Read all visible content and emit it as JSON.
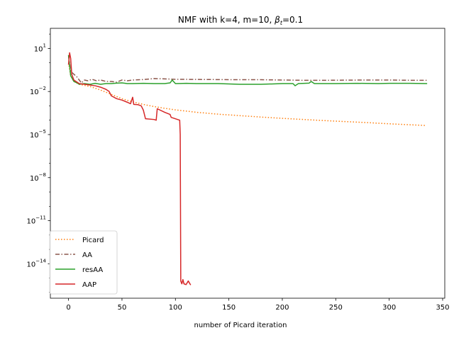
{
  "chart_data": {
    "type": "line",
    "title_prefix": "NMF with k=4, m=10,  ",
    "title_beta": "β",
    "title_beta_sub": "t",
    "title_suffix": "=0.1",
    "xlabel": "number of Picard iteration",
    "ylabel": "",
    "xlim": [
      -17,
      352
    ],
    "ylim_log10": [
      -16.4,
      2.4
    ],
    "y_scale": "log",
    "grid": false,
    "legend_position": "lower-left",
    "x_ticks": [
      0,
      50,
      100,
      150,
      200,
      250,
      300,
      350
    ],
    "x_tick_labels": [
      "0",
      "50",
      "100",
      "150",
      "200",
      "250",
      "300",
      "350"
    ],
    "y_ticks_log10": [
      1,
      -2,
      -5,
      -8,
      -11,
      -14
    ],
    "y_tick_labels": [
      {
        "base": "10",
        "exp": "1"
      },
      {
        "base": "10",
        "exp": "−2"
      },
      {
        "base": "10",
        "exp": "−5"
      },
      {
        "base": "10",
        "exp": "−8"
      },
      {
        "base": "10",
        "exp": "−11"
      },
      {
        "base": "10",
        "exp": "−14"
      }
    ],
    "series": [
      {
        "name": "Picard",
        "color": "#ff7f0e",
        "dash": "dotted",
        "points_log10": [
          [
            0,
            0
          ],
          [
            2,
            -0.9
          ],
          [
            5,
            -1.3
          ],
          [
            10,
            -1.5
          ],
          [
            20,
            -1.65
          ],
          [
            30,
            -1.9
          ],
          [
            40,
            -2.2
          ],
          [
            50,
            -2.5
          ],
          [
            60,
            -2.72
          ],
          [
            70,
            -2.9
          ],
          [
            80,
            -3.05
          ],
          [
            90,
            -3.17
          ],
          [
            100,
            -3.28
          ],
          [
            120,
            -3.45
          ],
          [
            140,
            -3.58
          ],
          [
            160,
            -3.68
          ],
          [
            180,
            -3.78
          ],
          [
            200,
            -3.87
          ],
          [
            220,
            -3.95
          ],
          [
            240,
            -4.03
          ],
          [
            260,
            -4.1
          ],
          [
            280,
            -4.17
          ],
          [
            300,
            -4.25
          ],
          [
            320,
            -4.32
          ],
          [
            335,
            -4.37
          ]
        ]
      },
      {
        "name": "AA",
        "color": "#8c564b",
        "dash": "dashdot",
        "points_log10": [
          [
            0,
            0.5
          ],
          [
            2,
            -0.6
          ],
          [
            5,
            -0.8
          ],
          [
            8,
            -1
          ],
          [
            10,
            -1.2
          ],
          [
            12,
            -1.4
          ],
          [
            15,
            -1.2
          ],
          [
            18,
            -1.25
          ],
          [
            22,
            -1.15
          ],
          [
            26,
            -1.25
          ],
          [
            30,
            -1.2
          ],
          [
            35,
            -1.3
          ],
          [
            40,
            -1.3
          ],
          [
            45,
            -1.35
          ],
          [
            50,
            -1.2
          ],
          [
            55,
            -1.25
          ],
          [
            60,
            -1.2
          ],
          [
            70,
            -1.17
          ],
          [
            80,
            -1.1
          ],
          [
            90,
            -1.12
          ],
          [
            100,
            -1.15
          ],
          [
            120,
            -1.16
          ],
          [
            140,
            -1.17
          ],
          [
            160,
            -1.18
          ],
          [
            180,
            -1.18
          ],
          [
            200,
            -1.2
          ],
          [
            220,
            -1.22
          ],
          [
            240,
            -1.22
          ],
          [
            260,
            -1.21
          ],
          [
            280,
            -1.2
          ],
          [
            300,
            -1.2
          ],
          [
            320,
            -1.22
          ],
          [
            335,
            -1.22
          ]
        ]
      },
      {
        "name": "resAA",
        "color": "#2ca02c",
        "dash": "solid",
        "points_log10": [
          [
            0,
            0.5
          ],
          [
            2,
            -0.9
          ],
          [
            5,
            -1.3
          ],
          [
            8,
            -1.4
          ],
          [
            10,
            -1.5
          ],
          [
            15,
            -1.45
          ],
          [
            20,
            -1.5
          ],
          [
            25,
            -1.43
          ],
          [
            30,
            -1.5
          ],
          [
            35,
            -1.45
          ],
          [
            40,
            -1.45
          ],
          [
            45,
            -1.42
          ],
          [
            50,
            -1.4
          ],
          [
            55,
            -1.45
          ],
          [
            60,
            -1.45
          ],
          [
            70,
            -1.43
          ],
          [
            80,
            -1.45
          ],
          [
            90,
            -1.45
          ],
          [
            95,
            -1.4
          ],
          [
            97,
            -1.2
          ],
          [
            100,
            -1.45
          ],
          [
            110,
            -1.43
          ],
          [
            120,
            -1.45
          ],
          [
            140,
            -1.45
          ],
          [
            160,
            -1.5
          ],
          [
            180,
            -1.5
          ],
          [
            200,
            -1.45
          ],
          [
            210,
            -1.45
          ],
          [
            212,
            -1.6
          ],
          [
            215,
            -1.45
          ],
          [
            225,
            -1.42
          ],
          [
            227,
            -1.3
          ],
          [
            230,
            -1.45
          ],
          [
            250,
            -1.45
          ],
          [
            270,
            -1.43
          ],
          [
            290,
            -1.45
          ],
          [
            300,
            -1.43
          ],
          [
            320,
            -1.43
          ],
          [
            335,
            -1.45
          ]
        ]
      },
      {
        "name": "AAP",
        "color": "#d62728",
        "dash": "solid",
        "points_log10": [
          [
            0,
            -0.1
          ],
          [
            1,
            0.7
          ],
          [
            2,
            0.3
          ],
          [
            3,
            -0.8
          ],
          [
            5,
            -1.2
          ],
          [
            8,
            -1.35
          ],
          [
            10,
            -1.45
          ],
          [
            15,
            -1.5
          ],
          [
            20,
            -1.55
          ],
          [
            25,
            -1.6
          ],
          [
            30,
            -1.7
          ],
          [
            35,
            -1.85
          ],
          [
            38,
            -2
          ],
          [
            40,
            -2.3
          ],
          [
            45,
            -2.5
          ],
          [
            50,
            -2.6
          ],
          [
            55,
            -2.75
          ],
          [
            58,
            -2.85
          ],
          [
            60,
            -2.4
          ],
          [
            61,
            -2.9
          ],
          [
            65,
            -2.92
          ],
          [
            68,
            -3
          ],
          [
            70,
            -3.3
          ],
          [
            72,
            -3.9
          ],
          [
            80,
            -3.95
          ],
          [
            82,
            -4
          ],
          [
            83,
            -3.2
          ],
          [
            90,
            -3.45
          ],
          [
            95,
            -3.6
          ],
          [
            96,
            -3.8
          ],
          [
            100,
            -3.9
          ],
          [
            104,
            -4
          ],
          [
            104.5,
            -5
          ],
          [
            105,
            -15.2
          ],
          [
            106,
            -15.4
          ],
          [
            107,
            -15.1
          ],
          [
            108,
            -15.4
          ],
          [
            110,
            -15.45
          ],
          [
            112,
            -15.2
          ],
          [
            114,
            -15.45
          ]
        ]
      }
    ]
  }
}
